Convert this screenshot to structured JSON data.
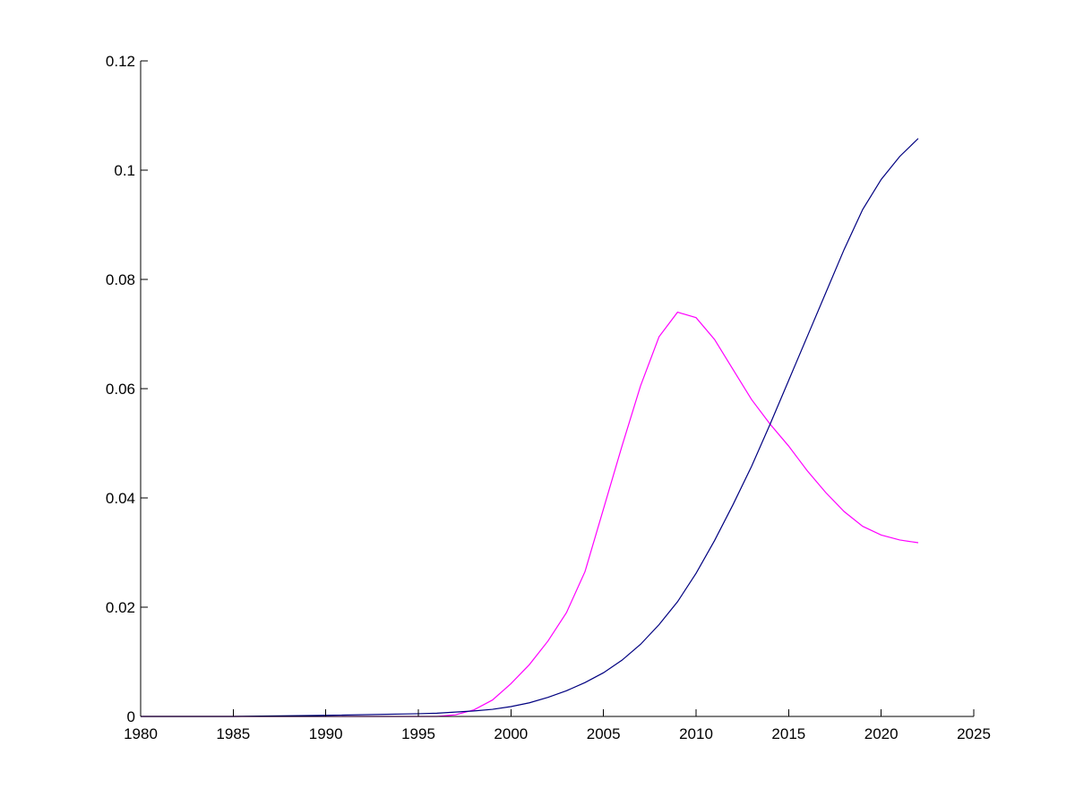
{
  "chart_data": {
    "type": "line",
    "title": "",
    "xlabel": "",
    "ylabel": "",
    "xlim": [
      1980,
      2025
    ],
    "ylim": [
      0,
      0.12
    ],
    "xticks": [
      1980,
      1985,
      1990,
      1995,
      2000,
      2005,
      2010,
      2015,
      2020,
      2025
    ],
    "xtick_labels": [
      "1980",
      "1985",
      "1990",
      "1995",
      "2000",
      "2005",
      "2010",
      "2015",
      "2020",
      "2025"
    ],
    "yticks": [
      0,
      0.02,
      0.04,
      0.06,
      0.08,
      0.1,
      0.12
    ],
    "ytick_labels": [
      "0",
      "0.02",
      "0.04",
      "0.06",
      "0.08",
      "0.1",
      "0.12"
    ],
    "grid": false,
    "legend": "none",
    "series": [
      {
        "color": "#ff00ff",
        "x": [
          1980,
          1985,
          1990,
          1995,
          1996,
          1997,
          1998,
          1999,
          2000,
          2001,
          2002,
          2003,
          2004,
          2005,
          2006,
          2007,
          2008,
          2009,
          2010,
          2011,
          2012,
          2013,
          2014,
          2015,
          2016,
          2017,
          2018,
          2019,
          2020,
          2021,
          2022
        ],
        "y": [
          0,
          0,
          0,
          0,
          0,
          0.0003,
          0.0012,
          0.003,
          0.006,
          0.0095,
          0.0138,
          0.019,
          0.0265,
          0.038,
          0.0495,
          0.0605,
          0.0695,
          0.074,
          0.073,
          0.069,
          0.0635,
          0.058,
          0.0535,
          0.0495,
          0.045,
          0.041,
          0.0375,
          0.0348,
          0.0332,
          0.0323,
          0.0318
        ]
      },
      {
        "color": "#000080",
        "x": [
          1980,
          1985,
          1990,
          1995,
          1996,
          1997,
          1998,
          1999,
          2000,
          2001,
          2002,
          2003,
          2004,
          2005,
          2006,
          2007,
          2008,
          2009,
          2010,
          2011,
          2012,
          2013,
          2014,
          2015,
          2016,
          2017,
          2018,
          2019,
          2020,
          2021,
          2022
        ],
        "y": [
          0,
          0,
          0.0002,
          0.0005,
          0.0006,
          0.0008,
          0.001,
          0.0013,
          0.0018,
          0.0025,
          0.0035,
          0.0047,
          0.0062,
          0.008,
          0.0103,
          0.0132,
          0.0168,
          0.021,
          0.0262,
          0.0322,
          0.0388,
          0.0458,
          0.0535,
          0.0615,
          0.0695,
          0.0775,
          0.0855,
          0.0928,
          0.0983,
          0.1025,
          0.1058
        ]
      }
    ]
  }
}
